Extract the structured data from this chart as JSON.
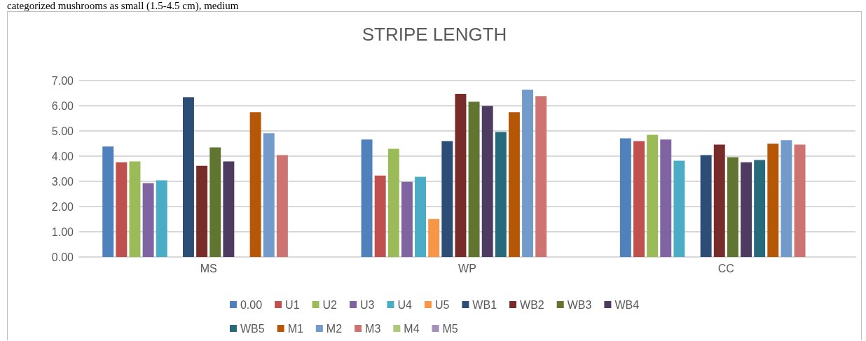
{
  "chart_data": {
    "type": "bar",
    "title": "STRIPE LENGTH",
    "annotations": [
      "categorized mushrooms as small (1.5-4.5 cm), medium"
    ],
    "categories": [
      "MS",
      "WP",
      "CC"
    ],
    "series": [
      {
        "name": "0.00",
        "color": "#4f81bd",
        "values": [
          4.38,
          4.66,
          4.71
        ]
      },
      {
        "name": "U1",
        "color": "#c0504d",
        "values": [
          3.76,
          3.23,
          4.6
        ]
      },
      {
        "name": "U2",
        "color": "#9bbb59",
        "values": [
          3.79,
          4.29,
          4.85
        ]
      },
      {
        "name": "U3",
        "color": "#8064a2",
        "values": [
          2.93,
          2.98,
          4.66
        ]
      },
      {
        "name": "U4",
        "color": "#4bacc6",
        "values": [
          3.04,
          3.18,
          3.82
        ]
      },
      {
        "name": "U5",
        "color": "#f79646",
        "values": [
          null,
          1.51,
          null
        ]
      },
      {
        "name": "WB1",
        "color": "#2c4d75",
        "values": [
          6.33,
          4.6,
          4.04
        ]
      },
      {
        "name": "WB2",
        "color": "#772c2a",
        "values": [
          3.62,
          6.47,
          4.46
        ]
      },
      {
        "name": "WB3",
        "color": "#5f7530",
        "values": [
          4.35,
          6.16,
          3.96
        ]
      },
      {
        "name": "WB4",
        "color": "#4d3b62",
        "values": [
          3.79,
          5.99,
          3.76
        ]
      },
      {
        "name": "WB5",
        "color": "#276a7c",
        "values": [
          null,
          4.96,
          3.85
        ]
      },
      {
        "name": "M1",
        "color": "#b65708",
        "values": [
          5.74,
          5.74,
          4.49
        ]
      },
      {
        "name": "M2",
        "color": "#729aca",
        "values": [
          4.91,
          6.64,
          4.63
        ]
      },
      {
        "name": "M3",
        "color": "#cd7371",
        "values": [
          4.04,
          6.38,
          4.46
        ]
      },
      {
        "name": "M4",
        "color": "#afc97a",
        "values": [
          null,
          null,
          null
        ]
      },
      {
        "name": "M5",
        "color": "#a48fbd",
        "values": [
          null,
          null,
          null
        ]
      }
    ],
    "ylim": [
      0,
      7
    ],
    "yticks": [
      {
        "value": 0,
        "label": "0.00"
      },
      {
        "value": 1,
        "label": "1.00"
      },
      {
        "value": 2,
        "label": "2.00"
      },
      {
        "value": 3,
        "label": "3.00"
      },
      {
        "value": 4,
        "label": "4.00"
      },
      {
        "value": 5,
        "label": "5.00"
      },
      {
        "value": 6,
        "label": "6.00"
      },
      {
        "value": 7,
        "label": "7.00"
      }
    ],
    "grid": "y",
    "legend": "bottom"
  }
}
